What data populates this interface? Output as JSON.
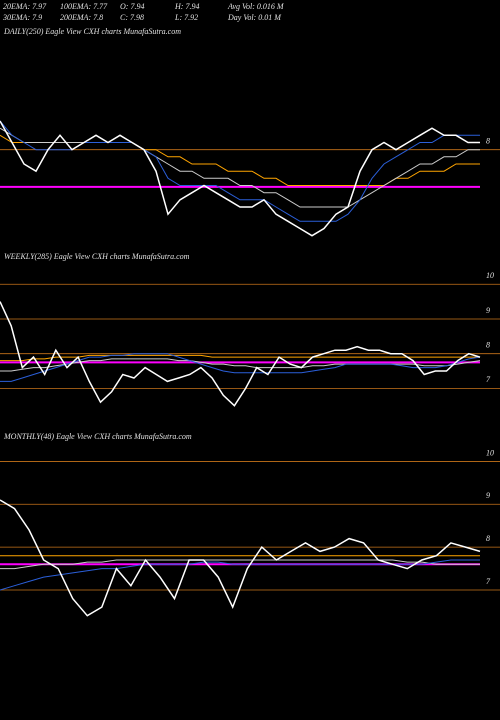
{
  "header": {
    "rows": [
      [
        "20EMA: 7.97",
        "100EMA: 7.77",
        "O: 7.94",
        "H: 7.94",
        "Avg Vol: 0.016  M"
      ],
      [
        "30EMA: 7.9",
        "200EMA: 7.8",
        "C: 7.98",
        "L: 7.92",
        "Day Vol: 0.01  M"
      ]
    ]
  },
  "chart_data": [
    {
      "type": "line",
      "title": "DAILY(250) Eagle   View CXH charts MunafaSutra.com",
      "ylim": [
        6.6,
        9.6
      ],
      "yticks": [
        8
      ],
      "grid": true,
      "hline": 7.48,
      "hline_color": "#ff00ff",
      "series": [
        {
          "color": "#ffa500",
          "values": [
            8.2,
            8.1,
            8.1,
            8.1,
            8.1,
            8.1,
            8.1,
            8.1,
            8.1,
            8.1,
            8.1,
            8.1,
            8.0,
            8.0,
            7.9,
            7.9,
            7.8,
            7.8,
            7.8,
            7.7,
            7.7,
            7.7,
            7.6,
            7.6,
            7.5,
            7.5,
            7.5,
            7.5,
            7.5,
            7.5,
            7.5,
            7.5,
            7.5,
            7.6,
            7.6,
            7.7,
            7.7,
            7.7,
            7.8,
            7.8,
            7.8
          ]
        },
        {
          "color": "#cccccc",
          "values": [
            8.3,
            8.2,
            8.1,
            8.1,
            8.1,
            8.1,
            8.1,
            8.1,
            8.1,
            8.1,
            8.1,
            8.1,
            8.0,
            7.9,
            7.8,
            7.7,
            7.7,
            7.6,
            7.6,
            7.6,
            7.5,
            7.5,
            7.4,
            7.4,
            7.3,
            7.2,
            7.2,
            7.2,
            7.2,
            7.2,
            7.3,
            7.4,
            7.5,
            7.6,
            7.7,
            7.8,
            7.8,
            7.9,
            7.9,
            8.0,
            8.0
          ]
        },
        {
          "color": "#2b5fd9",
          "values": [
            8.4,
            8.2,
            8.1,
            8.0,
            8.0,
            8.0,
            8.0,
            8.1,
            8.1,
            8.1,
            8.1,
            8.1,
            8.0,
            7.9,
            7.6,
            7.5,
            7.5,
            7.5,
            7.5,
            7.4,
            7.3,
            7.3,
            7.3,
            7.2,
            7.1,
            7.0,
            7.0,
            7.0,
            7.0,
            7.1,
            7.3,
            7.6,
            7.8,
            7.9,
            8.0,
            8.1,
            8.1,
            8.2,
            8.2,
            8.2,
            8.2
          ]
        },
        {
          "color": "#ffffff",
          "values": [
            8.4,
            8.1,
            7.8,
            7.7,
            8.0,
            8.2,
            8.0,
            8.1,
            8.2,
            8.1,
            8.2,
            8.1,
            8.0,
            7.7,
            7.1,
            7.3,
            7.4,
            7.5,
            7.4,
            7.3,
            7.2,
            7.2,
            7.3,
            7.1,
            7.0,
            6.9,
            6.8,
            6.9,
            7.1,
            7.2,
            7.7,
            8.0,
            8.1,
            8.0,
            8.1,
            8.2,
            8.3,
            8.2,
            8.2,
            8.1,
            8.1
          ]
        }
      ]
    },
    {
      "type": "line",
      "title": "WEEKLY(285) Eagle   View CXH charts MunafaSutra.com",
      "ylim": [
        5.8,
        10.7
      ],
      "yticks": [
        10,
        9,
        8,
        7
      ],
      "grid": true,
      "hline": 7.75,
      "hline_color": "#ff00ff",
      "series": [
        {
          "color": "#ffa500",
          "values": [
            7.8,
            7.8,
            7.8,
            7.85,
            7.85,
            7.9,
            7.9,
            7.9,
            7.95,
            7.95,
            7.95,
            7.95,
            7.95,
            7.95,
            7.95,
            7.95,
            7.95,
            7.95,
            7.95,
            7.9,
            7.9,
            7.9,
            7.9,
            7.9,
            7.9,
            7.9,
            7.9,
            7.9,
            7.9,
            7.9,
            7.9,
            7.9,
            7.9,
            7.9,
            7.9,
            7.9,
            7.9,
            7.9,
            7.9,
            7.9,
            7.9,
            7.9,
            7.9,
            7.9
          ]
        },
        {
          "color": "#cccccc",
          "values": [
            7.5,
            7.5,
            7.55,
            7.6,
            7.6,
            7.65,
            7.7,
            7.75,
            7.8,
            7.8,
            7.85,
            7.85,
            7.85,
            7.85,
            7.85,
            7.85,
            7.8,
            7.8,
            7.75,
            7.7,
            7.7,
            7.65,
            7.65,
            7.6,
            7.6,
            7.6,
            7.6,
            7.6,
            7.65,
            7.65,
            7.7,
            7.7,
            7.7,
            7.7,
            7.7,
            7.7,
            7.7,
            7.7,
            7.65,
            7.65,
            7.65,
            7.7,
            7.75,
            7.8
          ]
        },
        {
          "color": "#2b5fd9",
          "values": [
            7.2,
            7.2,
            7.3,
            7.4,
            7.5,
            7.6,
            7.7,
            7.8,
            7.9,
            7.9,
            7.95,
            7.95,
            8.0,
            8.0,
            8.0,
            8.0,
            7.9,
            7.8,
            7.7,
            7.6,
            7.5,
            7.45,
            7.45,
            7.45,
            7.45,
            7.45,
            7.45,
            7.45,
            7.5,
            7.55,
            7.6,
            7.7,
            7.7,
            7.7,
            7.7,
            7.7,
            7.65,
            7.6,
            7.6,
            7.6,
            7.65,
            7.75,
            7.85,
            7.9
          ]
        },
        {
          "color": "#ffffff",
          "values": [
            9.5,
            8.8,
            7.6,
            7.9,
            7.4,
            8.1,
            7.6,
            7.9,
            7.2,
            6.6,
            6.9,
            7.4,
            7.3,
            7.6,
            7.4,
            7.2,
            7.3,
            7.4,
            7.6,
            7.3,
            6.8,
            6.5,
            7.0,
            7.6,
            7.4,
            7.9,
            7.7,
            7.6,
            7.9,
            8.0,
            8.1,
            8.1,
            8.2,
            8.1,
            8.1,
            8.0,
            8.0,
            7.8,
            7.4,
            7.5,
            7.5,
            7.8,
            8.0,
            7.9
          ]
        }
      ]
    },
    {
      "type": "line",
      "title": "MONTHLY(48) Eagle   View CXH charts MunafaSutra.com",
      "ylim": [
        4.2,
        10.5
      ],
      "yticks": [
        10,
        9,
        8,
        7
      ],
      "grid": true,
      "hline": 7.6,
      "hline_color": "#ff00ff",
      "series": [
        {
          "color": "#ffa500",
          "values": [
            7.8,
            7.8,
            7.8,
            7.8,
            7.8,
            7.8,
            7.8,
            7.8,
            7.8,
            7.8,
            7.8,
            7.8,
            7.8,
            7.8,
            7.8,
            7.8,
            7.8,
            7.8,
            7.8,
            7.8,
            7.8,
            7.8,
            7.8,
            7.8,
            7.8,
            7.8,
            7.8,
            7.8,
            7.8,
            7.8,
            7.8,
            7.8,
            7.8,
            7.8
          ]
        },
        {
          "color": "#cccccc",
          "values": [
            7.5,
            7.5,
            7.55,
            7.6,
            7.6,
            7.6,
            7.65,
            7.65,
            7.7,
            7.7,
            7.7,
            7.7,
            7.7,
            7.7,
            7.7,
            7.7,
            7.7,
            7.7,
            7.7,
            7.7,
            7.7,
            7.7,
            7.7,
            7.7,
            7.7,
            7.7,
            7.7,
            7.7,
            7.65,
            7.65,
            7.6,
            7.6,
            7.6,
            7.6
          ]
        },
        {
          "color": "#2b5fd9",
          "values": [
            7.0,
            7.1,
            7.2,
            7.3,
            7.35,
            7.4,
            7.45,
            7.5,
            7.5,
            7.55,
            7.6,
            7.6,
            7.6,
            7.6,
            7.65,
            7.65,
            7.6,
            7.6,
            7.6,
            7.6,
            7.6,
            7.6,
            7.6,
            7.6,
            7.6,
            7.6,
            7.6,
            7.6,
            7.6,
            7.6,
            7.65,
            7.7,
            7.7,
            7.7
          ]
        },
        {
          "color": "#ffffff",
          "values": [
            9.1,
            8.9,
            8.4,
            7.7,
            7.5,
            6.8,
            6.4,
            6.6,
            7.5,
            7.1,
            7.7,
            7.3,
            6.8,
            7.7,
            7.7,
            7.3,
            6.6,
            7.5,
            8.0,
            7.7,
            7.9,
            8.1,
            7.9,
            8.0,
            8.2,
            8.1,
            7.7,
            7.6,
            7.5,
            7.7,
            7.8,
            8.1,
            8.0,
            7.9
          ]
        }
      ]
    }
  ]
}
